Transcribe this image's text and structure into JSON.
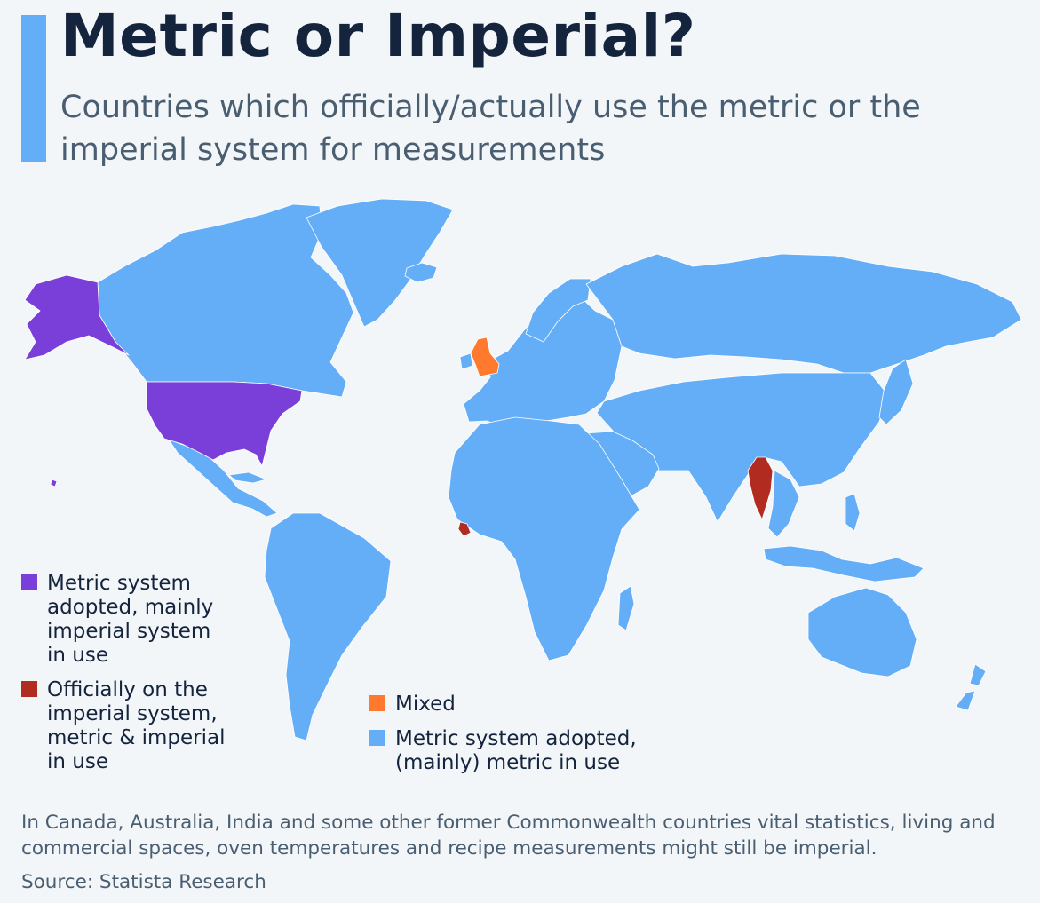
{
  "title": "Metric or Imperial?",
  "subtitle": "Countries which officially/actually use the metric or the imperial system for measurements",
  "colors": {
    "metric_imperial_in_use": "#7b3fd9",
    "imperial_official": "#b22b21",
    "mixed": "#ff7a2e",
    "metric": "#64aef7",
    "accent": "#64aef7",
    "title": "#14243d"
  },
  "legend": {
    "metric_adopted_imperial_in_use": "Metric system adopted, mainly imperial system in use",
    "officially_imperial": "Officially on the imperial system, metric & imperial in use",
    "mixed": "Mixed",
    "metric": "Metric system adopted, (mainly) metric in use"
  },
  "map": {
    "categories": {
      "metric_adopted_imperial_in_use": [
        "United States"
      ],
      "officially_imperial": [
        "Myanmar",
        "Liberia"
      ],
      "mixed": [
        "United Kingdom"
      ],
      "metric": [
        "All other countries"
      ]
    }
  },
  "footnote": "In Canada, Australia, India and some other former Commonwealth countries vital statistics, living and commercial spaces, oven temperatures and recipe measurements might still be imperial.",
  "source": "Source: Statista Research"
}
